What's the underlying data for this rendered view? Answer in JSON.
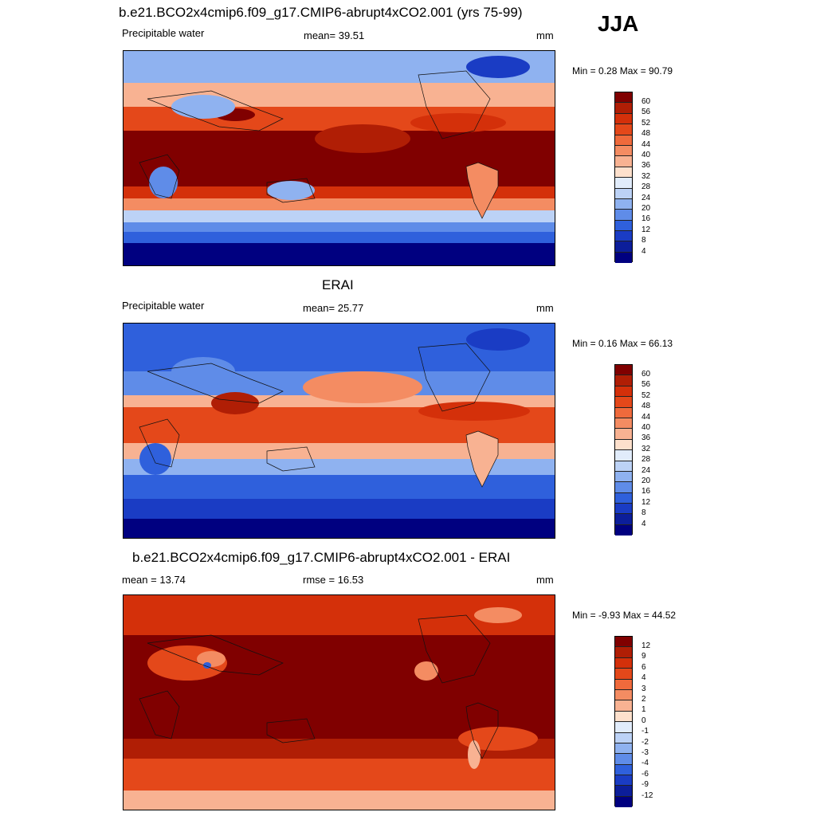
{
  "season": "JJA",
  "panels": [
    {
      "title": "b.e21.BCO2x4cmip6.f09_g17.CMIP6-abrupt4xCO2.001 (yrs 75-99)",
      "left": "Precipitable water",
      "center": "mean=  39.51",
      "right": "mm",
      "minmax": "Min =   0.28 Max =  90.79",
      "colorbar": {
        "labels": [
          "60",
          "56",
          "52",
          "48",
          "44",
          "40",
          "36",
          "32",
          "28",
          "24",
          "20",
          "16",
          "12",
          "8",
          "4"
        ],
        "colors": [
          "#800000",
          "#b01e05",
          "#d4300a",
          "#e4481a",
          "#ef6a3c",
          "#f48c62",
          "#f8b292",
          "#fde0cc",
          "#e1ecfb",
          "#bcd2f6",
          "#8fb2f0",
          "#5f8ce8",
          "#2f60dc",
          "#1a3cc4",
          "#0c1e9a",
          "#000080"
        ]
      }
    },
    {
      "title": "ERAI",
      "left": "Precipitable water",
      "center": "mean=  25.77",
      "right": "mm",
      "minmax": "Min =   0.16 Max =  66.13",
      "colorbar": {
        "labels": [
          "60",
          "56",
          "52",
          "48",
          "44",
          "40",
          "36",
          "32",
          "28",
          "24",
          "20",
          "16",
          "12",
          "8",
          "4"
        ],
        "colors": [
          "#800000",
          "#b01e05",
          "#d4300a",
          "#e4481a",
          "#ef6a3c",
          "#f48c62",
          "#f8b292",
          "#fde0cc",
          "#e1ecfb",
          "#bcd2f6",
          "#8fb2f0",
          "#5f8ce8",
          "#2f60dc",
          "#1a3cc4",
          "#0c1e9a",
          "#000080"
        ]
      }
    },
    {
      "title": "b.e21.BCO2x4cmip6.f09_g17.CMIP6-abrupt4xCO2.001 - ERAI",
      "left": "mean =  13.74",
      "center": "rmse =  16.53",
      "right": "mm",
      "minmax": "Min =  -9.93 Max =  44.52",
      "colorbar": {
        "labels": [
          "12",
          "9",
          "6",
          "4",
          "3",
          "2",
          "1",
          "0",
          "-1",
          "-2",
          "-3",
          "-4",
          "-6",
          "-9",
          "-12"
        ],
        "colors": [
          "#800000",
          "#b01e05",
          "#d4300a",
          "#e4481a",
          "#ef6a3c",
          "#f48c62",
          "#f8b292",
          "#fde0cc",
          "#e1ecfb",
          "#bcd2f6",
          "#8fb2f0",
          "#5f8ce8",
          "#2f60dc",
          "#1a3cc4",
          "#0c1e9a",
          "#000080"
        ]
      }
    }
  ]
}
